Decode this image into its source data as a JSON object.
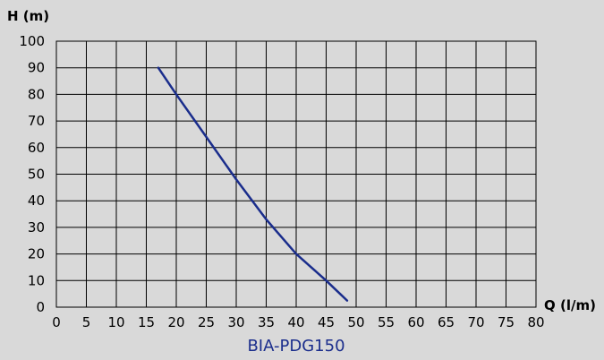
{
  "chart_data": {
    "type": "line",
    "title": "BIA-PDG150",
    "xlabel": "Q (l/m)",
    "ylabel": "H (m)",
    "xlim": [
      0,
      80
    ],
    "ylim": [
      0,
      100
    ],
    "xticks": [
      0,
      5,
      10,
      15,
      20,
      25,
      30,
      35,
      40,
      45,
      50,
      55,
      60,
      65,
      70,
      75,
      80
    ],
    "yticks": [
      0,
      10,
      20,
      30,
      40,
      50,
      60,
      70,
      80,
      90,
      100
    ],
    "grid": true,
    "series": [
      {
        "color": "#1a2d8c",
        "x": [
          17,
          20,
          25,
          30,
          35,
          40,
          45,
          48.5
        ],
        "y": [
          90,
          80,
          64,
          48,
          33,
          20,
          10,
          2.5
        ]
      }
    ]
  }
}
